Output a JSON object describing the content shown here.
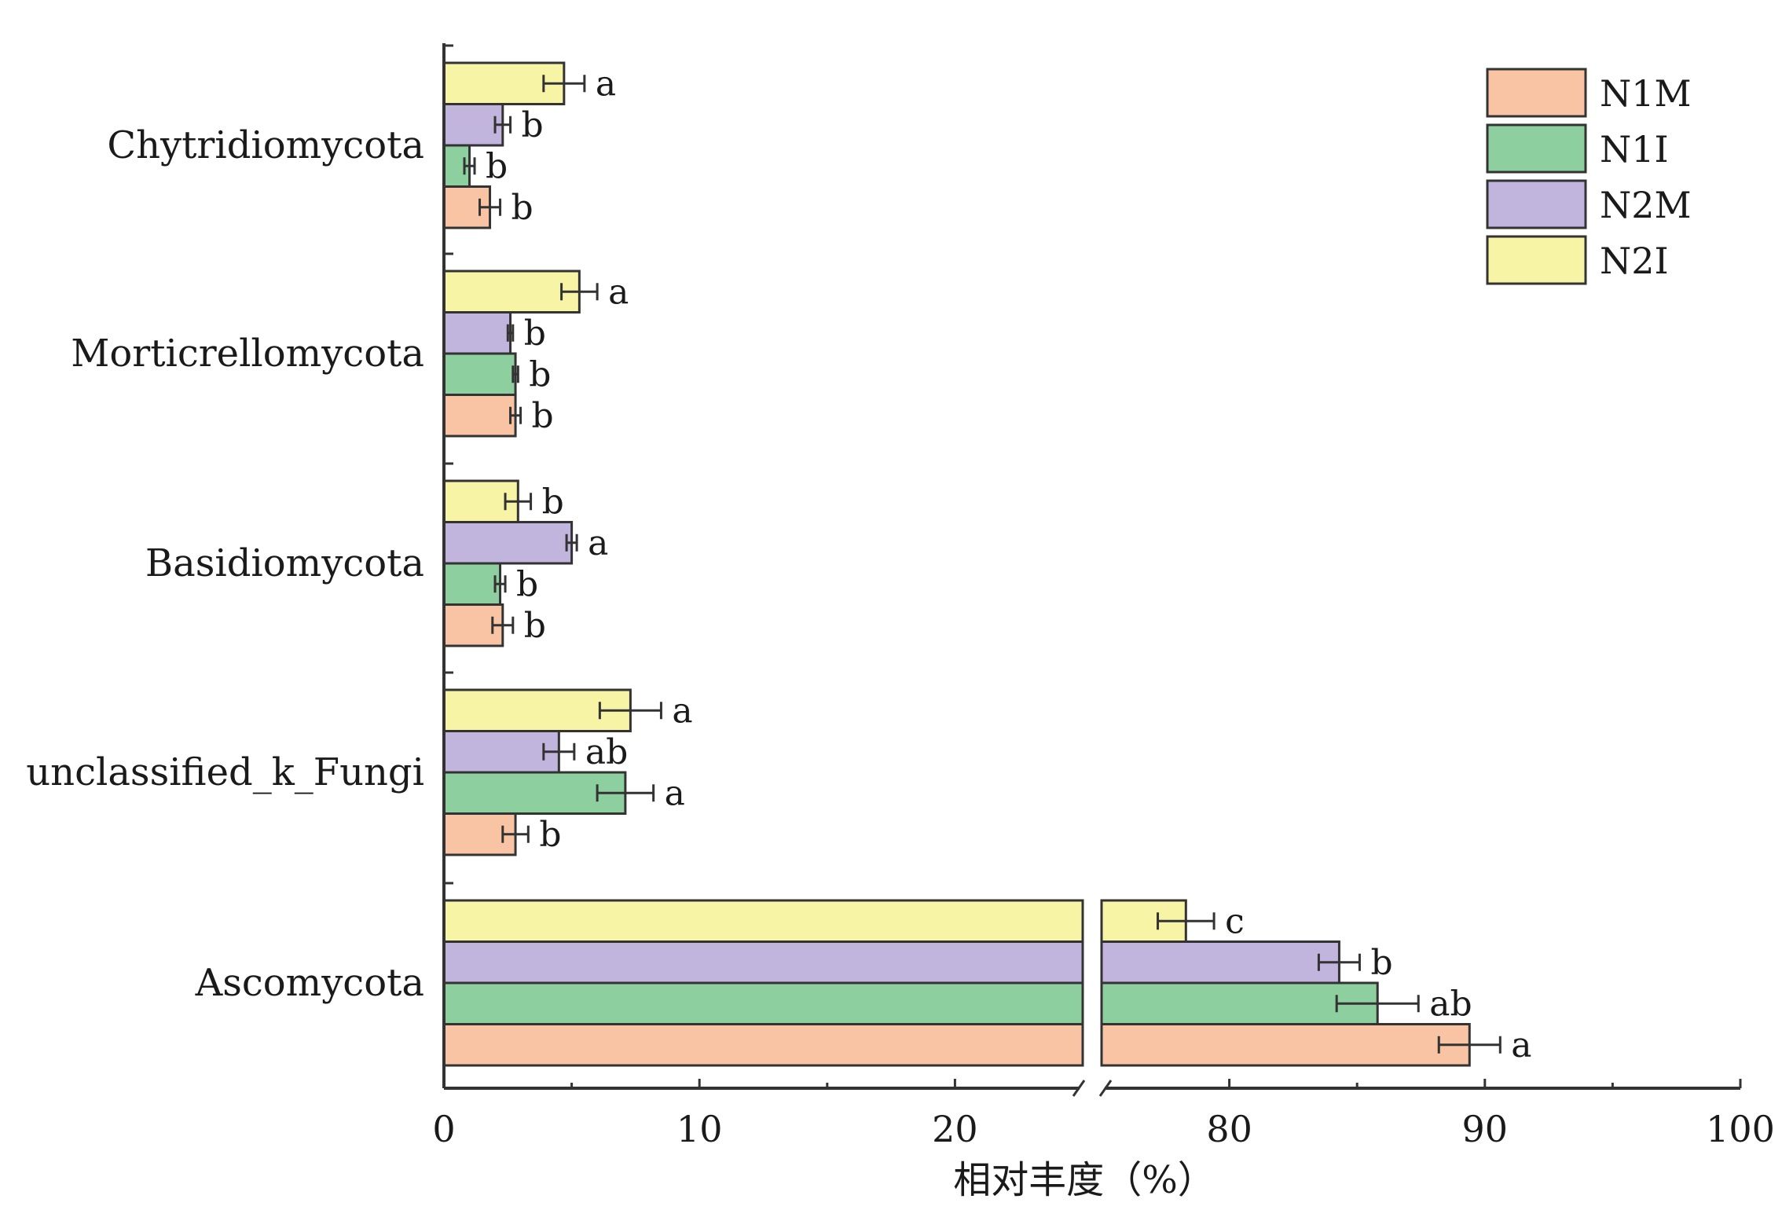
{
  "chart_data": {
    "type": "bar",
    "orientation": "horizontal",
    "xlabel": "相对丰度（%）",
    "ylabel": "",
    "title": "",
    "categories": [
      "Chytridiomycota",
      "Morticrellomycota",
      "Basidiomycota",
      "unclassified_k_Fungi",
      "Ascomycota"
    ],
    "x_axis": {
      "broken": true,
      "segments": [
        {
          "range": [
            0,
            25
          ],
          "ticks": [
            0,
            10,
            20
          ]
        },
        {
          "range": [
            75,
            100
          ],
          "ticks": [
            80,
            90,
            100
          ]
        }
      ]
    },
    "legend": {
      "position": "top-right"
    },
    "series": [
      {
        "name": "N1M",
        "color": "#F8C4A3",
        "values": [
          1.8,
          2.8,
          2.3,
          2.8,
          89.4
        ],
        "errors": [
          0.4,
          0.2,
          0.4,
          0.5,
          1.2
        ],
        "letters": [
          "b",
          "b",
          "b",
          "b",
          "a"
        ]
      },
      {
        "name": "N1I",
        "color": "#8DCF9E",
        "values": [
          1.0,
          2.8,
          2.2,
          7.1,
          85.8
        ],
        "errors": [
          0.2,
          0.1,
          0.2,
          1.1,
          1.6
        ],
        "letters": [
          "b",
          "b",
          "b",
          "a",
          "ab"
        ]
      },
      {
        "name": "N2M",
        "color": "#C1B5DE",
        "values": [
          2.3,
          2.6,
          5.0,
          4.5,
          84.3
        ],
        "errors": [
          0.3,
          0.1,
          0.2,
          0.6,
          0.8
        ],
        "letters": [
          "b",
          "b",
          "a",
          "ab",
          "b"
        ]
      },
      {
        "name": "N2I",
        "color": "#F8F4A6",
        "values": [
          4.7,
          5.3,
          2.9,
          7.3,
          78.3
        ],
        "errors": [
          0.8,
          0.7,
          0.5,
          1.2,
          1.1
        ],
        "letters": [
          "a",
          "a",
          "b",
          "a",
          "c"
        ]
      }
    ]
  }
}
